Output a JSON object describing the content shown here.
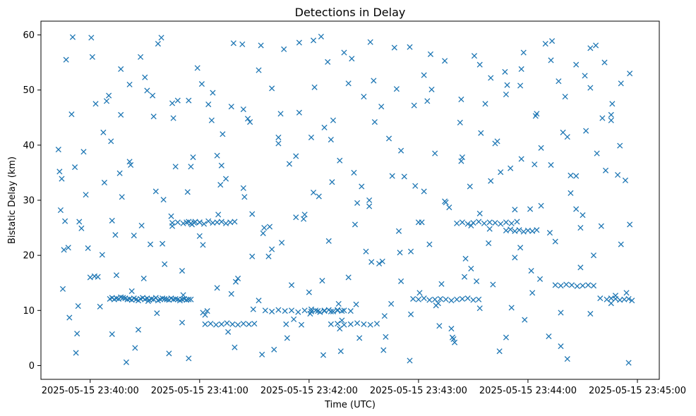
{
  "chart_data": {
    "type": "scatter",
    "title": "Detections in Delay",
    "xlabel": "Time (UTC)",
    "ylabel": "Bistatic Delay (km)",
    "marker": "x",
    "color": "#1f77b4",
    "grid": false,
    "x_unit": "minutes since 2025-05-15 23:40:00",
    "xlim": [
      -0.45,
      5.2
    ],
    "ylim": [
      -2.5,
      62.5
    ],
    "x_ticks": [
      {
        "value": 0,
        "label": "2025-05-15 23:40:00"
      },
      {
        "value": 1,
        "label": "2025-05-15 23:41:00"
      },
      {
        "value": 2,
        "label": "2025-05-15 23:42:00"
      },
      {
        "value": 3,
        "label": "2025-05-15 23:43:00"
      },
      {
        "value": 4,
        "label": "2025-05-15 23:44:00"
      },
      {
        "value": 5,
        "label": "2025-05-15 23:45:00"
      }
    ],
    "y_ticks": [
      {
        "value": 0,
        "label": "0"
      },
      {
        "value": 10,
        "label": "10"
      },
      {
        "value": 20,
        "label": "20"
      },
      {
        "value": 30,
        "label": "30"
      },
      {
        "value": 40,
        "label": "40"
      },
      {
        "value": 50,
        "label": "50"
      },
      {
        "value": 60,
        "label": "60"
      }
    ],
    "series": [
      {
        "name": "detections",
        "x": [
          -0.29,
          -0.27,
          -0.25,
          -0.22,
          -0.19,
          -0.16,
          -0.13,
          -0.1,
          -0.06,
          -0.02,
          0.01,
          0.05,
          0.09,
          0.13,
          0.17,
          0.2,
          0.24,
          0.28,
          0.33,
          0.37,
          0.41,
          0.46,
          0.5,
          0.55,
          0.58,
          0.62,
          0.67,
          0.72,
          0.75,
          0.8,
          0.85,
          0.9,
          0.94,
          0.98,
          1.03,
          1.07,
          1.12,
          1.17,
          1.21,
          1.26,
          1.31,
          1.35,
          1.4,
          1.44,
          1.49,
          1.54,
          1.58,
          1.63,
          1.68,
          1.72,
          1.77,
          1.82,
          1.86,
          1.91,
          1.95,
          2.0,
          2.05,
          2.09,
          2.13,
          2.18,
          2.22,
          2.27,
          2.32,
          2.36,
          2.41,
          2.46,
          2.5,
          2.55,
          2.59,
          2.64,
          2.69,
          2.73,
          2.78,
          2.82,
          2.87,
          2.92,
          2.96,
          3.01,
          3.05,
          3.1,
          3.15,
          3.19,
          3.24,
          3.28,
          3.33,
          3.38,
          3.42,
          3.47,
          3.51,
          3.56,
          3.61,
          3.65,
          3.7,
          3.74,
          3.79,
          3.84,
          3.88,
          3.93,
          3.97,
          4.02,
          4.07,
          4.11,
          4.16,
          4.21,
          4.25,
          4.3,
          4.34,
          4.39,
          4.44,
          4.48,
          4.53,
          4.57,
          4.62,
          4.67,
          4.71,
          4.76,
          4.8,
          4.85,
          4.89,
          4.93,
          -0.28,
          -0.2,
          -0.12,
          -0.04,
          0.04,
          0.12,
          0.2,
          0.28,
          0.36,
          0.44,
          0.52,
          0.6,
          0.68,
          0.76,
          0.84,
          0.92,
          1.0,
          1.08,
          1.16,
          1.24,
          1.32,
          1.4,
          1.48,
          1.56,
          1.64,
          1.72,
          1.8,
          1.88,
          1.96,
          2.04,
          2.12,
          2.2,
          2.28,
          2.36,
          2.44,
          2.52,
          2.6,
          2.68,
          2.76,
          2.84,
          2.92,
          3.0,
          3.08,
          3.16,
          3.24,
          3.32,
          3.4,
          3.48,
          3.56,
          3.64,
          3.72,
          3.8,
          3.88,
          3.96,
          4.04,
          4.12,
          4.2,
          4.28,
          4.36,
          4.44,
          4.52,
          4.6,
          4.68,
          4.76,
          4.84,
          4.92,
          -0.26,
          -0.17,
          -0.08,
          0.02,
          0.11,
          0.19,
          0.29,
          0.38,
          0.47,
          0.57,
          0.66,
          0.75,
          0.84,
          0.93,
          1.02,
          1.11,
          1.2,
          1.29,
          1.39,
          1.48,
          1.57,
          1.66,
          1.75,
          1.84,
          1.93,
          2.02,
          2.11,
          2.21,
          2.3,
          2.39,
          2.48,
          2.57,
          2.66,
          2.75,
          2.84,
          2.93,
          3.03,
          3.12,
          3.21,
          3.3,
          3.39,
          3.48,
          3.57,
          3.66,
          3.75,
          3.85,
          3.94,
          4.03,
          4.12,
          4.21,
          4.3,
          4.39,
          4.48,
          4.57,
          4.66,
          4.76,
          4.85,
          4.93,
          -0.23,
          -0.11,
          0.0,
          0.15,
          0.27,
          0.4,
          0.53,
          0.65,
          0.78,
          0.9,
          1.03,
          1.16,
          1.29,
          1.41,
          1.54,
          1.66,
          1.79,
          1.91,
          2.04,
          2.17,
          2.29,
          2.42,
          2.55,
          2.67,
          2.8,
          2.93,
          3.05,
          3.18,
          3.31,
          3.43,
          3.56,
          3.68,
          3.81,
          3.94,
          4.06,
          4.19,
          4.32,
          4.44,
          4.57,
          4.7,
          4.82,
          -0.24,
          -0.14,
          0.07,
          0.23,
          0.36,
          0.49,
          0.61,
          0.74,
          0.89,
          1.05,
          1.19,
          1.33,
          1.46,
          1.59,
          1.74,
          1.88,
          2.01,
          2.14,
          2.28,
          2.43,
          2.56,
          2.7,
          2.83,
          2.97,
          3.11,
          3.25,
          3.39,
          3.53,
          3.66,
          3.8,
          3.93,
          4.08,
          4.22,
          4.36,
          4.5,
          4.63,
          4.77,
          4.9,
          0.18,
          0.2,
          0.22,
          0.24,
          0.26,
          0.28,
          0.3,
          0.32,
          0.34,
          0.36,
          0.38,
          0.4,
          0.42,
          0.44,
          0.46,
          0.48,
          0.5,
          0.52,
          0.54,
          0.56,
          0.58,
          0.6,
          0.62,
          0.64,
          0.66,
          0.68,
          0.7,
          0.72,
          0.74,
          0.76,
          0.78,
          0.8,
          0.82,
          0.84,
          0.86,
          0.88,
          0.9,
          0.92,
          0.88,
          0.92,
          0.96,
          1.0,
          1.04,
          1.08,
          1.12,
          1.16,
          1.2,
          1.24,
          1.28,
          1.32,
          1.6,
          1.66,
          1.72,
          1.78,
          1.84,
          1.9,
          1.96,
          2.02,
          2.08,
          2.14,
          2.2,
          2.26,
          2.32,
          2.38,
          2.2,
          2.26,
          2.32,
          2.38,
          2.44,
          2.5,
          2.56,
          2.62,
          2.95,
          3.0,
          3.05,
          3.1,
          3.15,
          3.2,
          3.25,
          3.3,
          3.35,
          3.4,
          3.45,
          3.5,
          3.55,
          3.35,
          3.4,
          3.45,
          3.5,
          3.55,
          3.6,
          3.65,
          3.7,
          3.75,
          3.8,
          3.85,
          3.9,
          3.8,
          3.84,
          3.88,
          3.92,
          3.96,
          4.0,
          4.04,
          4.08,
          4.25,
          4.3,
          4.35,
          4.4,
          4.45,
          4.5,
          4.55,
          4.6,
          4.72,
          4.76,
          4.8,
          4.84,
          4.88,
          4.92,
          4.95,
          1.05,
          1.1,
          1.15,
          1.2,
          1.25,
          1.3,
          1.35,
          1.4,
          1.45,
          1.5,
          2.02,
          2.06,
          2.1,
          2.14,
          2.18,
          2.22,
          2.26,
          2.3,
          0.75,
          0.8,
          0.85,
          0.9,
          0.95,
          1.0
        ],
        "y": [
          39.2,
          28.2,
          13.9,
          55.5,
          8.7,
          59.6,
          2.3,
          26.1,
          38.8,
          21.3,
          59.5,
          47.5,
          10.7,
          33.2,
          49.0,
          5.7,
          16.4,
          45.5,
          0.6,
          36.4,
          3.2,
          56.0,
          52.3,
          22.0,
          45.2,
          58.4,
          30.1,
          2.2,
          25.3,
          48.1,
          12.8,
          1.3,
          37.8,
          54.0,
          21.9,
          9.9,
          49.5,
          27.4,
          42.0,
          6.1,
          58.5,
          15.8,
          32.2,
          44.8,
          10.2,
          53.6,
          24.0,
          19.8,
          2.9,
          40.3,
          57.4,
          36.6,
          8.4,
          45.9,
          26.6,
          13.3,
          50.5,
          30.7,
          1.9,
          22.6,
          44.5,
          11.2,
          56.8,
          16.0,
          35.0,
          5.0,
          48.8,
          28.9,
          51.7,
          18.5,
          9.0,
          41.2,
          57.7,
          24.4,
          34.3,
          0.9,
          47.2,
          13.2,
          52.7,
          22.0,
          38.5,
          7.2,
          55.3,
          28.7,
          4.2,
          44.1,
          16.1,
          32.5,
          56.2,
          10.4,
          47.5,
          24.8,
          40.3,
          2.6,
          53.3,
          35.8,
          19.6,
          50.8,
          8.3,
          28.4,
          45.3,
          15.7,
          58.4,
          36.4,
          22.5,
          3.5,
          48.8,
          31.3,
          54.6,
          17.8,
          42.6,
          9.4,
          58.1,
          25.3,
          35.4,
          45.5,
          12.7,
          51.2,
          33.6,
          25.6,
          35.2,
          21.4,
          5.8,
          31.0,
          16.2,
          42.3,
          26.3,
          53.8,
          37.0,
          6.5,
          49.9,
          31.6,
          18.4,
          44.9,
          7.8,
          36.1,
          23.5,
          47.4,
          14.1,
          33.9,
          3.3,
          46.5,
          19.8,
          58.1,
          25.2,
          41.4,
          5.0,
          38.0,
          27.4,
          59.0,
          15.4,
          41.0,
          6.7,
          51.2,
          29.5,
          20.7,
          44.2,
          2.8,
          34.4,
          15.3,
          57.8,
          26.0,
          48.0,
          10.9,
          29.8,
          4.8,
          37.8,
          17.6,
          54.6,
          22.2,
          40.7,
          5.1,
          28.3,
          56.8,
          13.2,
          39.5,
          24.1,
          51.6,
          1.2,
          34.4,
          52.6,
          20.0,
          44.9,
          11.3,
          39.9,
          0.5,
          33.9,
          45.6,
          24.9,
          56.0,
          20.1,
          40.7,
          30.6,
          13.5,
          25.4,
          49.0,
          22.1,
          47.6,
          17.2,
          25.6,
          51.1,
          44.5,
          36.3,
          13.0,
          58.3,
          27.5,
          2.0,
          50.3,
          22.3,
          14.6,
          7.4,
          41.4,
          59.7,
          33.3,
          8.2,
          55.7,
          32.5,
          18.8,
          47.0,
          11.2,
          39.0,
          20.7,
          26.0,
          50.1,
          14.8,
          6.7,
          37.1,
          25.4,
          42.2,
          52.2,
          35.1,
          10.5,
          53.8,
          17.2,
          29.0,
          55.4,
          9.6,
          34.5,
          25.0,
          50.4,
          12.2,
          44.5,
          22.0,
          53.0,
          26.2,
          10.8,
          16.0,
          48.0,
          34.9,
          23.6,
          11.7,
          59.5,
          36.1,
          48.1,
          9.6,
          38.1,
          47.0,
          30.6,
          11.8,
          21.1,
          7.5,
          58.6,
          31.4,
          55.1,
          2.6,
          25.6,
          30.0,
          18.9,
          50.2,
          9.3,
          31.6,
          11.3,
          5.1,
          19.4,
          27.6,
          14.7,
          50.9,
          37.5,
          36.5,
          5.3,
          42.3,
          28.4,
          57.6,
          55.0,
          34.6,
          21.0,
          36.0,
          16.1,
          23.7,
          51.0,
          15.8,
          9.5,
          27.1,
          31.5,
          9.2,
          32.8,
          15.2,
          44.2,
          25.0,
          45.7,
          26.9,
          9.4,
          43.2,
          37.2,
          11.1,
          58.7,
          5.2,
          20.5,
          32.6,
          56.5,
          29.6,
          48.3,
          15.3,
          33.5,
          49.2,
          21.4,
          45.7,
          58.9,
          41.5,
          27.3,
          38.5,
          47.5,
          13.2,
          12.1,
          12.3,
          12.0,
          12.2,
          12.1,
          12.4,
          12.3,
          12.2,
          12.0,
          12.1,
          11.9,
          12.2,
          12.0,
          11.8,
          12.1,
          12.3,
          12.0,
          12.2,
          11.9,
          12.1,
          12.0,
          12.3,
          11.8,
          12.0,
          12.2,
          12.1,
          12.0,
          11.9,
          12.2,
          12.0,
          12.1,
          12.0,
          11.8,
          12.0,
          12.1,
          11.9,
          12.0,
          12.0,
          26.0,
          25.8,
          26.1,
          26.0,
          25.7,
          26.2,
          25.9,
          26.0,
          26.1,
          25.8,
          26.0,
          26.1,
          10.0,
          9.8,
          10.1,
          9.9,
          10.0,
          9.7,
          10.0,
          10.2,
          9.9,
          10.0,
          9.8,
          10.1,
          10.0,
          9.9,
          7.5,
          7.6,
          7.4,
          7.5,
          7.7,
          7.5,
          7.4,
          7.6,
          12.1,
          12.0,
          12.2,
          11.9,
          12.0,
          12.1,
          12.0,
          11.8,
          12.0,
          12.1,
          12.2,
          11.9,
          12.0,
          25.8,
          26.0,
          25.7,
          25.9,
          26.1,
          25.8,
          26.0,
          25.9,
          25.7,
          26.0,
          25.8,
          26.1,
          24.5,
          24.7,
          24.4,
          24.6,
          24.3,
          24.5,
          24.4,
          24.6,
          14.6,
          14.5,
          14.7,
          14.6,
          14.4,
          14.5,
          14.6,
          14.5,
          12.0,
          12.2,
          12.1,
          11.9,
          12.0,
          12.1,
          11.8,
          7.5,
          7.6,
          7.4,
          7.5,
          7.7,
          7.5,
          7.4,
          7.6,
          7.5,
          7.6,
          9.8,
          10.0,
          9.7,
          9.9,
          10.1,
          9.8,
          10.0,
          9.9,
          25.9,
          26.0,
          25.8,
          26.1,
          25.9,
          26.0
        ]
      }
    ]
  }
}
